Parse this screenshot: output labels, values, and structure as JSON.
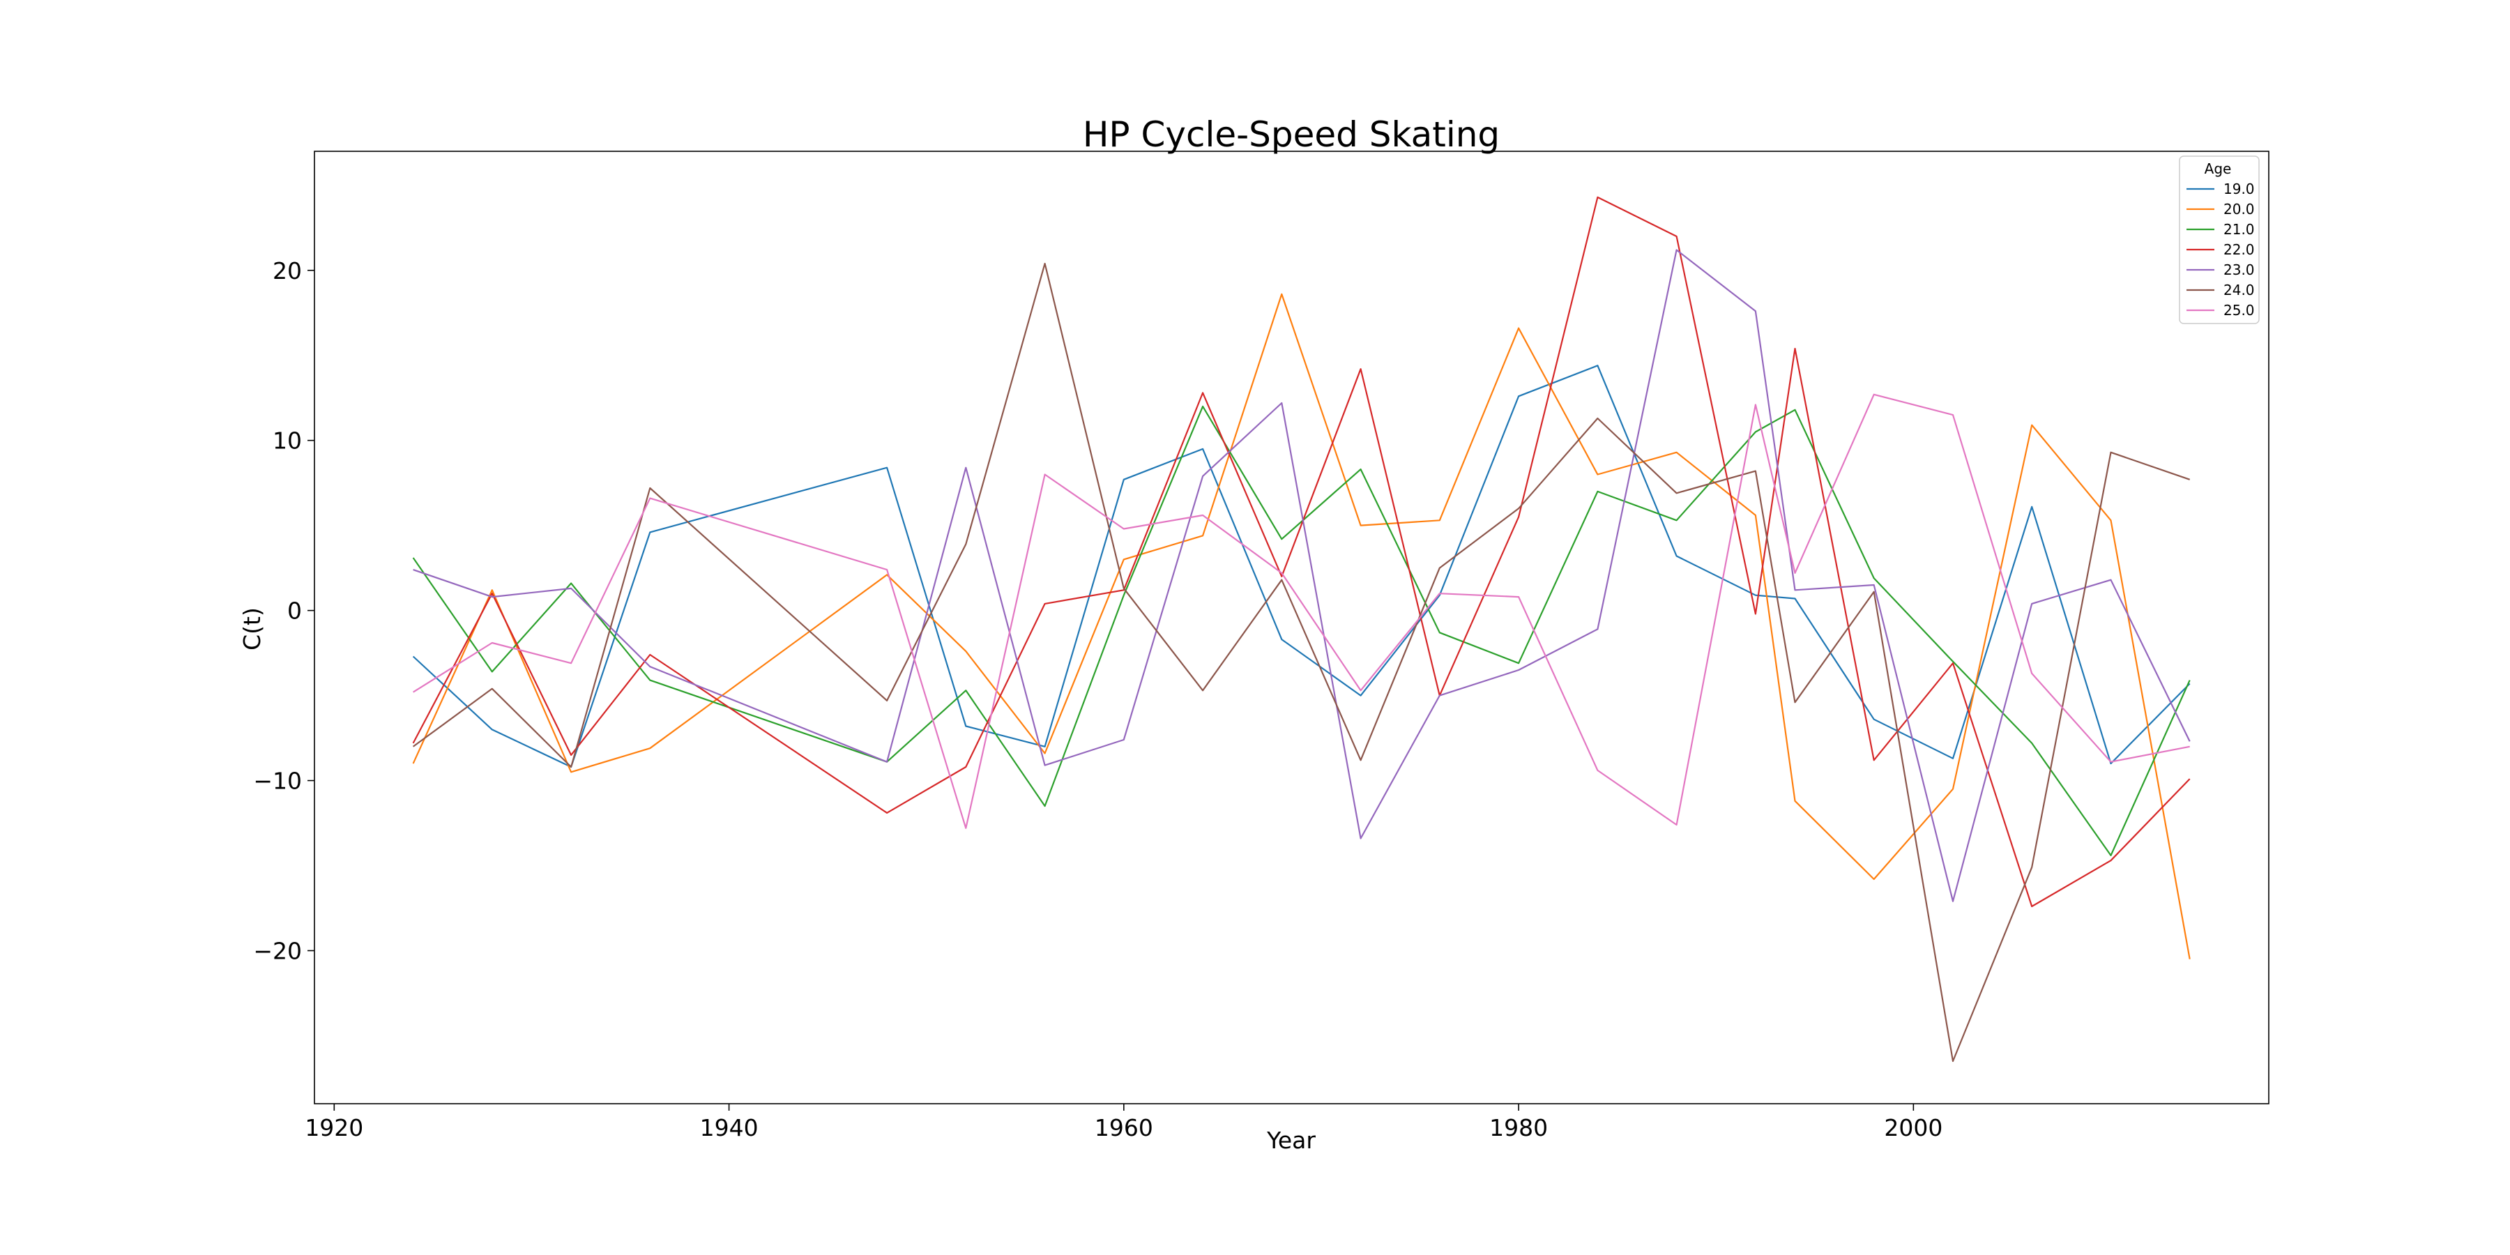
{
  "chart_data": {
    "type": "line",
    "title": "HP Cycle-Speed Skating",
    "xlabel": "Year",
    "ylabel": "C(t)",
    "xlim": [
      1919,
      2018
    ],
    "ylim": [
      -29,
      27
    ],
    "xticks": [
      1920,
      1940,
      1960,
      1980,
      2000
    ],
    "yticks": [
      -20,
      -10,
      0,
      10,
      20
    ],
    "ytick_labels": [
      "−20",
      "−10",
      "0",
      "10",
      "20"
    ],
    "grid": false,
    "legend": {
      "title": "Age",
      "position": "top-right"
    },
    "x": [
      1924,
      1928,
      1932,
      1936,
      1948,
      1952,
      1956,
      1960,
      1964,
      1968,
      1972,
      1976,
      1980,
      1984,
      1988,
      1992,
      1994,
      1998,
      2002,
      2006,
      2010,
      2014
    ],
    "series": [
      {
        "name": "19.0",
        "color": "#1f77b4",
        "values": [
          -2.7,
          -7.0,
          -9.2,
          4.6,
          8.4,
          -6.8,
          -8.0,
          7.7,
          9.5,
          -1.7,
          -5.0,
          0.9,
          12.6,
          14.4,
          3.2,
          0.9,
          0.7,
          -6.4,
          -8.7,
          6.1,
          -9.0,
          -4.3
        ]
      },
      {
        "name": "20.0",
        "color": "#ff7f0e",
        "values": [
          -9.0,
          1.2,
          -9.5,
          -8.1,
          2.1,
          -2.4,
          -8.4,
          3.0,
          4.4,
          18.6,
          5.0,
          5.3,
          16.6,
          8.0,
          9.3,
          5.6,
          -11.2,
          -15.8,
          -10.5,
          10.9,
          5.3,
          -20.5
        ]
      },
      {
        "name": "21.0",
        "color": "#2ca02c",
        "values": [
          3.1,
          -3.6,
          1.6,
          -4.1,
          -8.9,
          -4.7,
          -11.5,
          0.9,
          12.0,
          4.2,
          8.3,
          -1.3,
          -3.1,
          7.0,
          5.3,
          10.5,
          11.8,
          1.9,
          -3.0,
          -7.8,
          -14.4,
          -4.1
        ]
      },
      {
        "name": "22.0",
        "color": "#d62728",
        "values": [
          -7.8,
          1.0,
          -8.5,
          -2.6,
          -11.9,
          -9.2,
          0.4,
          1.2,
          12.8,
          2.0,
          14.2,
          -5.0,
          5.5,
          24.3,
          22.0,
          -0.2,
          15.4,
          -8.8,
          -3.1,
          -17.4,
          -14.7,
          -9.9
        ]
      },
      {
        "name": "23.0",
        "color": "#9467bd",
        "values": [
          2.4,
          0.8,
          1.3,
          -3.3,
          -8.9,
          8.4,
          -9.1,
          -7.6,
          7.9,
          12.2,
          -13.4,
          -5.0,
          -3.5,
          -1.1,
          21.2,
          17.6,
          1.2,
          1.5,
          -17.1,
          0.4,
          1.8,
          -7.7
        ]
      },
      {
        "name": "24.0",
        "color": "#8c564b",
        "values": [
          -8.0,
          -4.6,
          -9.2,
          7.2,
          -5.3,
          3.9,
          20.4,
          1.3,
          -4.7,
          1.8,
          -8.8,
          2.5,
          6.0,
          11.3,
          6.9,
          8.2,
          -5.4,
          1.1,
          -26.5,
          -15.1,
          9.3,
          7.7
        ]
      },
      {
        "name": "25.0",
        "color": "#e377c2",
        "values": [
          -4.8,
          -1.9,
          -3.1,
          6.6,
          2.4,
          -12.8,
          8.0,
          4.8,
          5.6,
          2.2,
          -4.7,
          1.0,
          0.8,
          -9.4,
          -12.6,
          12.1,
          2.2,
          12.7,
          11.5,
          -3.7,
          -8.9,
          -8.0
        ]
      }
    ]
  }
}
